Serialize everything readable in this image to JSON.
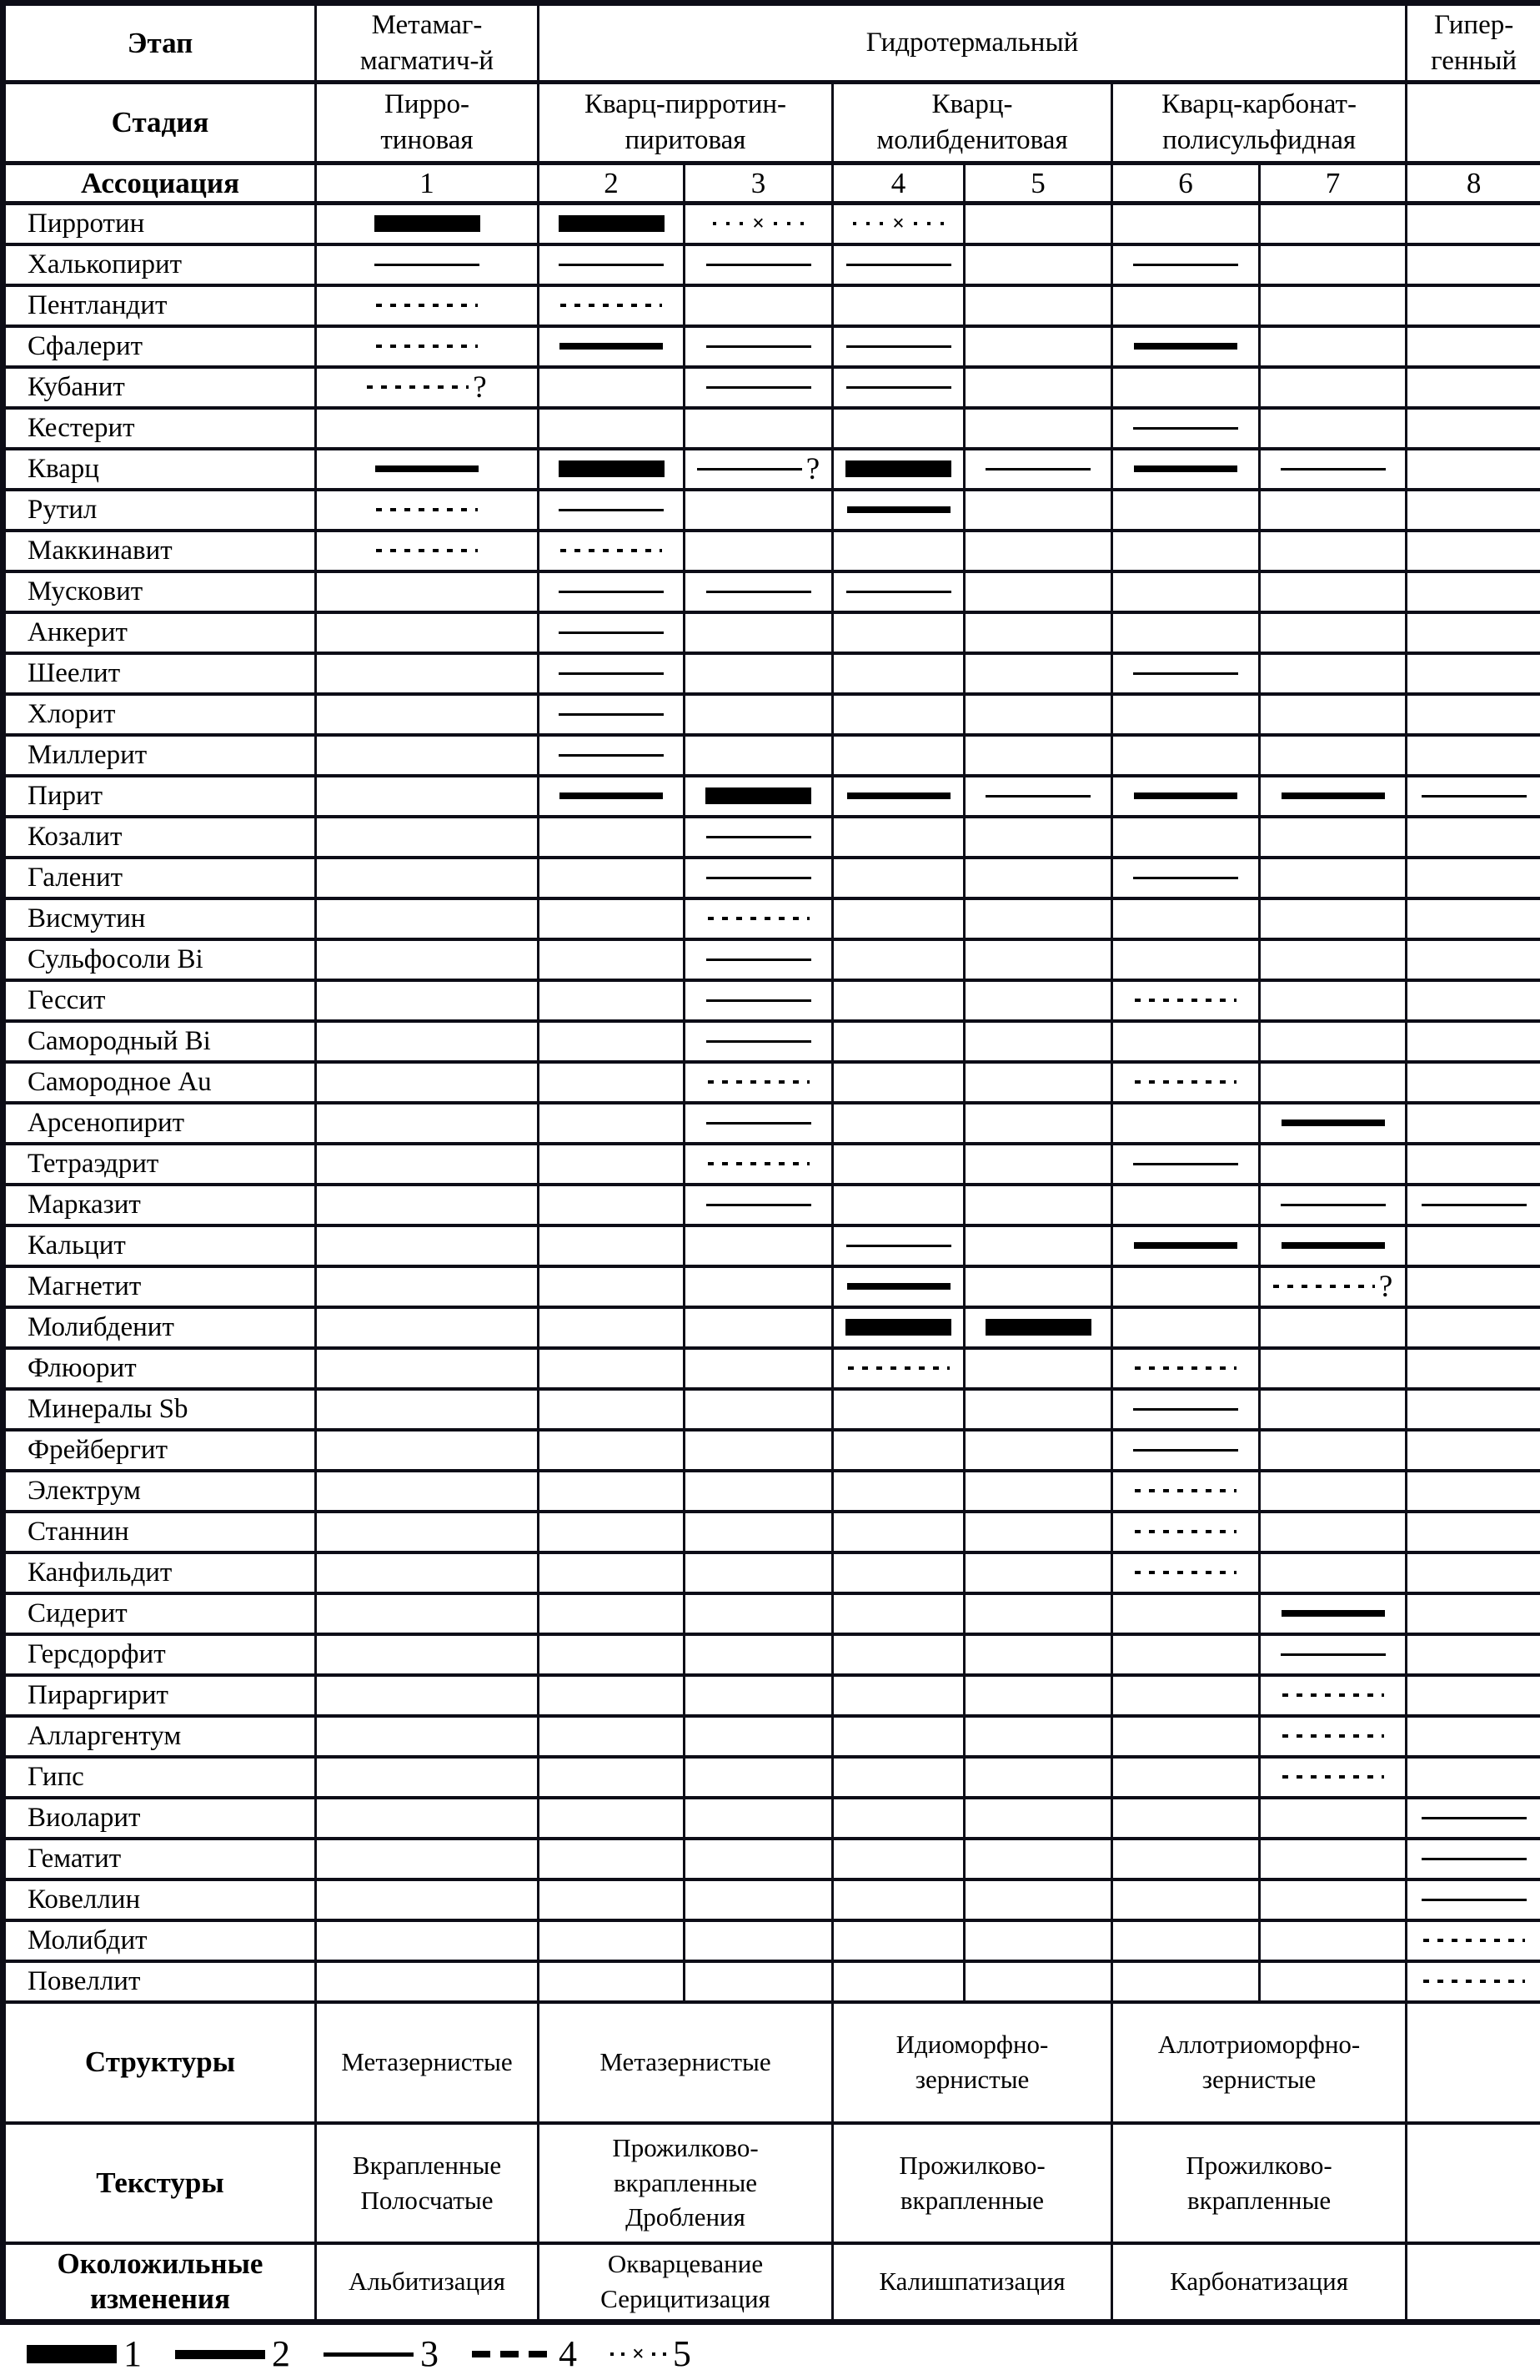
{
  "colors": {
    "line": "#0d0d17",
    "bar": "#000000"
  },
  "marks": {
    "question": "?",
    "cross": "×"
  },
  "header": {
    "etap": "Этап",
    "stage_metamag": "Метамаг-\nмагматич-й",
    "hydrothermal": "Гидротермальный",
    "hypergene": "Гипер-\nгенный",
    "stadia": "Стадия",
    "stage1": "Пирро-\nтиновая",
    "stage23": "Кварц-пирротин-\nпиритовая",
    "stage45": "Кварц-\nмолибденитовая",
    "stage67": "Кварц-карбонат-\nполисульфидная",
    "assoc": "Ассоциация",
    "assoc_numbers": [
      "1",
      "2",
      "3",
      "4",
      "5",
      "6",
      "7",
      "8"
    ]
  },
  "style_legend_note": "bar styles: 1=very thick bar, 2=thick line, 3=thin line, 4=dotted line, 5=dotted line with x; '?' suffix = question mark after symbol",
  "minerals": [
    {
      "name": "Пирротин",
      "cols": [
        "1",
        "1",
        "5",
        "5",
        "",
        "",
        "",
        ""
      ]
    },
    {
      "name": "Халькопирит",
      "cols": [
        "3",
        "3",
        "3",
        "3",
        "",
        "3",
        "",
        ""
      ]
    },
    {
      "name": "Пентландит",
      "cols": [
        "4",
        "4",
        "",
        "",
        "",
        "",
        "",
        ""
      ]
    },
    {
      "name": "Сфалерит",
      "cols": [
        "4",
        "2",
        "3",
        "3",
        "",
        "2",
        "",
        ""
      ]
    },
    {
      "name": "Кубанит",
      "cols": [
        "4?",
        "",
        "3",
        "3",
        "",
        "",
        "",
        ""
      ]
    },
    {
      "name": "Кестерит",
      "cols": [
        "",
        "",
        "",
        "",
        "",
        "3",
        "",
        ""
      ]
    },
    {
      "name": "Кварц",
      "cols": [
        "2",
        "1",
        "3?",
        "1",
        "3",
        "2",
        "3",
        ""
      ]
    },
    {
      "name": "Рутил",
      "cols": [
        "4",
        "3",
        "",
        "2",
        "",
        "",
        "",
        ""
      ]
    },
    {
      "name": "Маккинавит",
      "cols": [
        "4",
        "4",
        "",
        "",
        "",
        "",
        "",
        ""
      ]
    },
    {
      "name": "Мусковит",
      "cols": [
        "",
        "3",
        "3",
        "3",
        "",
        "",
        "",
        ""
      ]
    },
    {
      "name": "Анкерит",
      "cols": [
        "",
        "3",
        "",
        "",
        "",
        "",
        "",
        ""
      ]
    },
    {
      "name": "Шеелит",
      "cols": [
        "",
        "3",
        "",
        "",
        "",
        "3",
        "",
        ""
      ]
    },
    {
      "name": "Хлорит",
      "cols": [
        "",
        "3",
        "",
        "",
        "",
        "",
        "",
        ""
      ]
    },
    {
      "name": "Миллерит",
      "cols": [
        "",
        "3",
        "",
        "",
        "",
        "",
        "",
        ""
      ]
    },
    {
      "name": "Пирит",
      "cols": [
        "",
        "2",
        "1",
        "2",
        "3",
        "2",
        "2",
        "3"
      ]
    },
    {
      "name": "Козалит",
      "cols": [
        "",
        "",
        "3",
        "",
        "",
        "",
        "",
        ""
      ]
    },
    {
      "name": "Галенит",
      "cols": [
        "",
        "",
        "3",
        "",
        "",
        "3",
        "",
        ""
      ]
    },
    {
      "name": "Висмутин",
      "cols": [
        "",
        "",
        "4",
        "",
        "",
        "",
        "",
        ""
      ]
    },
    {
      "name": "Сульфосоли Bi",
      "cols": [
        "",
        "",
        "3",
        "",
        "",
        "",
        "",
        ""
      ]
    },
    {
      "name": "Гессит",
      "cols": [
        "",
        "",
        "3",
        "",
        "",
        "4",
        "",
        ""
      ]
    },
    {
      "name": "Самородный Bi",
      "cols": [
        "",
        "",
        "3",
        "",
        "",
        "",
        "",
        ""
      ]
    },
    {
      "name": "Самородное Au",
      "cols": [
        "",
        "",
        "4",
        "",
        "",
        "4",
        "",
        ""
      ]
    },
    {
      "name": "Арсенопирит",
      "cols": [
        "",
        "",
        "3",
        "",
        "",
        "",
        "2",
        ""
      ]
    },
    {
      "name": "Тетраэдрит",
      "cols": [
        "",
        "",
        "4",
        "",
        "",
        "3",
        "",
        ""
      ]
    },
    {
      "name": "Марказит",
      "cols": [
        "",
        "",
        "3",
        "",
        "",
        "",
        "3",
        "3"
      ]
    },
    {
      "name": "Кальцит",
      "cols": [
        "",
        "",
        "",
        "3",
        "",
        "2",
        "2",
        ""
      ]
    },
    {
      "name": "Магнетит",
      "cols": [
        "",
        "",
        "",
        "2",
        "",
        "",
        "4?",
        ""
      ]
    },
    {
      "name": "Молибденит",
      "cols": [
        "",
        "",
        "",
        "1",
        "1",
        "",
        "",
        ""
      ]
    },
    {
      "name": "Флюорит",
      "cols": [
        "",
        "",
        "",
        "4",
        "",
        "4",
        "",
        ""
      ]
    },
    {
      "name": "Минералы Sb",
      "cols": [
        "",
        "",
        "",
        "",
        "",
        "3",
        "",
        ""
      ]
    },
    {
      "name": "Фрейбергит",
      "cols": [
        "",
        "",
        "",
        "",
        "",
        "3",
        "",
        ""
      ]
    },
    {
      "name": "Электрум",
      "cols": [
        "",
        "",
        "",
        "",
        "",
        "4",
        "",
        ""
      ]
    },
    {
      "name": "Станнин",
      "cols": [
        "",
        "",
        "",
        "",
        "",
        "4",
        "",
        ""
      ]
    },
    {
      "name": "Канфильдит",
      "cols": [
        "",
        "",
        "",
        "",
        "",
        "4",
        "",
        ""
      ]
    },
    {
      "name": "Сидерит",
      "cols": [
        "",
        "",
        "",
        "",
        "",
        "",
        "2",
        ""
      ]
    },
    {
      "name": "Герсдорфит",
      "cols": [
        "",
        "",
        "",
        "",
        "",
        "",
        "3",
        ""
      ]
    },
    {
      "name": "Пираргирит",
      "cols": [
        "",
        "",
        "",
        "",
        "",
        "",
        "4",
        ""
      ]
    },
    {
      "name": "Алларгентум",
      "cols": [
        "",
        "",
        "",
        "",
        "",
        "",
        "4",
        ""
      ]
    },
    {
      "name": "Гипс",
      "cols": [
        "",
        "",
        "",
        "",
        "",
        "",
        "4",
        ""
      ]
    },
    {
      "name": "Виоларит",
      "cols": [
        "",
        "",
        "",
        "",
        "",
        "",
        "",
        "3"
      ]
    },
    {
      "name": "Гематит",
      "cols": [
        "",
        "",
        "",
        "",
        "",
        "",
        "",
        "3"
      ]
    },
    {
      "name": "Ковеллин",
      "cols": [
        "",
        "",
        "",
        "",
        "",
        "",
        "",
        "3"
      ]
    },
    {
      "name": "Молибдит",
      "cols": [
        "",
        "",
        "",
        "",
        "",
        "",
        "",
        "4"
      ]
    },
    {
      "name": "Повеллит",
      "cols": [
        "",
        "",
        "",
        "",
        "",
        "",
        "",
        "4"
      ]
    }
  ],
  "sections": {
    "structures": {
      "label": "Структуры",
      "values": [
        "Метазернистые",
        "Метазернистые",
        "Идиоморфно-\nзернистые",
        "Аллотриоморфно-\nзернистые",
        ""
      ]
    },
    "textures": {
      "label": "Текстуры",
      "values": [
        "Вкрапленные\nПолосчатые",
        "Прожилково-\nвкрапленные\nДробления",
        "Прожилково-\nвкрапленные",
        "Прожилково-\nвкрапленные",
        ""
      ]
    },
    "alterations": {
      "label": "Околожильные\nизменения",
      "values": [
        "Альбитизация",
        "Окварцевание\nСерицитизация",
        "Калишпатизация",
        "Карбонатизация",
        ""
      ]
    }
  },
  "legend": {
    "items": [
      {
        "symbol": "thick-bar",
        "label": "1"
      },
      {
        "symbol": "thick-line",
        "label": "2"
      },
      {
        "symbol": "thin-line",
        "label": "3"
      },
      {
        "symbol": "dashed-line",
        "label": "4"
      },
      {
        "symbol": "dotted-x-line",
        "label": "5"
      }
    ]
  }
}
